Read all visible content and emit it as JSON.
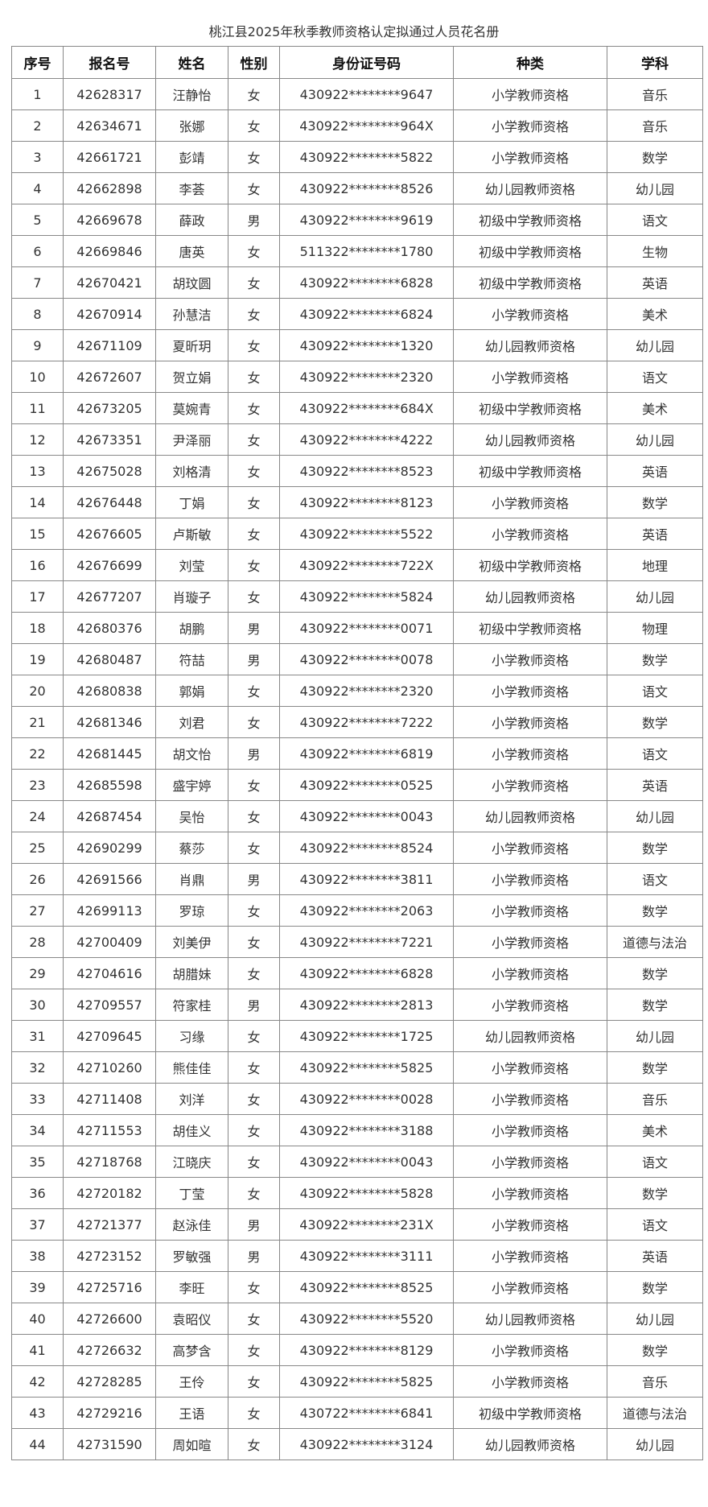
{
  "title": "桃江县2025年秋季教师资格认定拟通过人员花名册",
  "columns": [
    "序号",
    "报名号",
    "姓名",
    "性别",
    "身份证号码",
    "种类",
    "学科"
  ],
  "rows": [
    [
      "1",
      "42628317",
      "汪静怡",
      "女",
      "430922********9647",
      "小学教师资格",
      "音乐"
    ],
    [
      "2",
      "42634671",
      "张娜",
      "女",
      "430922********964X",
      "小学教师资格",
      "音乐"
    ],
    [
      "3",
      "42661721",
      "彭靖",
      "女",
      "430922********5822",
      "小学教师资格",
      "数学"
    ],
    [
      "4",
      "42662898",
      "李荟",
      "女",
      "430922********8526",
      "幼儿园教师资格",
      "幼儿园"
    ],
    [
      "5",
      "42669678",
      "薛政",
      "男",
      "430922********9619",
      "初级中学教师资格",
      "语文"
    ],
    [
      "6",
      "42669846",
      "唐英",
      "女",
      "511322********1780",
      "初级中学教师资格",
      "生物"
    ],
    [
      "7",
      "42670421",
      "胡玟圆",
      "女",
      "430922********6828",
      "初级中学教师资格",
      "英语"
    ],
    [
      "8",
      "42670914",
      "孙慧洁",
      "女",
      "430922********6824",
      "小学教师资格",
      "美术"
    ],
    [
      "9",
      "42671109",
      "夏昕玥",
      "女",
      "430922********1320",
      "幼儿园教师资格",
      "幼儿园"
    ],
    [
      "10",
      "42672607",
      "贺立娟",
      "女",
      "430922********2320",
      "小学教师资格",
      "语文"
    ],
    [
      "11",
      "42673205",
      "莫婉青",
      "女",
      "430922********684X",
      "初级中学教师资格",
      "美术"
    ],
    [
      "12",
      "42673351",
      "尹泽丽",
      "女",
      "430922********4222",
      "幼儿园教师资格",
      "幼儿园"
    ],
    [
      "13",
      "42675028",
      "刘格清",
      "女",
      "430922********8523",
      "初级中学教师资格",
      "英语"
    ],
    [
      "14",
      "42676448",
      "丁娟",
      "女",
      "430922********8123",
      "小学教师资格",
      "数学"
    ],
    [
      "15",
      "42676605",
      "卢斯敏",
      "女",
      "430922********5522",
      "小学教师资格",
      "英语"
    ],
    [
      "16",
      "42676699",
      "刘莹",
      "女",
      "430922********722X",
      "初级中学教师资格",
      "地理"
    ],
    [
      "17",
      "42677207",
      "肖璇子",
      "女",
      "430922********5824",
      "幼儿园教师资格",
      "幼儿园"
    ],
    [
      "18",
      "42680376",
      "胡鹏",
      "男",
      "430922********0071",
      "初级中学教师资格",
      "物理"
    ],
    [
      "19",
      "42680487",
      "符喆",
      "男",
      "430922********0078",
      "小学教师资格",
      "数学"
    ],
    [
      "20",
      "42680838",
      "郭娟",
      "女",
      "430922********2320",
      "小学教师资格",
      "语文"
    ],
    [
      "21",
      "42681346",
      "刘君",
      "女",
      "430922********7222",
      "小学教师资格",
      "数学"
    ],
    [
      "22",
      "42681445",
      "胡文怡",
      "男",
      "430922********6819",
      "小学教师资格",
      "语文"
    ],
    [
      "23",
      "42685598",
      "盛宇婷",
      "女",
      "430922********0525",
      "小学教师资格",
      "英语"
    ],
    [
      "24",
      "42687454",
      "吴怡",
      "女",
      "430922********0043",
      "幼儿园教师资格",
      "幼儿园"
    ],
    [
      "25",
      "42690299",
      "蔡莎",
      "女",
      "430922********8524",
      "小学教师资格",
      "数学"
    ],
    [
      "26",
      "42691566",
      "肖鼎",
      "男",
      "430922********3811",
      "小学教师资格",
      "语文"
    ],
    [
      "27",
      "42699113",
      "罗琼",
      "女",
      "430922********2063",
      "小学教师资格",
      "数学"
    ],
    [
      "28",
      "42700409",
      "刘美伊",
      "女",
      "430922********7221",
      "小学教师资格",
      "道德与法治"
    ],
    [
      "29",
      "42704616",
      "胡腊妹",
      "女",
      "430922********6828",
      "小学教师资格",
      "数学"
    ],
    [
      "30",
      "42709557",
      "符家桂",
      "男",
      "430922********2813",
      "小学教师资格",
      "数学"
    ],
    [
      "31",
      "42709645",
      "习缘",
      "女",
      "430922********1725",
      "幼儿园教师资格",
      "幼儿园"
    ],
    [
      "32",
      "42710260",
      "熊佳佳",
      "女",
      "430922********5825",
      "小学教师资格",
      "数学"
    ],
    [
      "33",
      "42711408",
      "刘洋",
      "女",
      "430922********0028",
      "小学教师资格",
      "音乐"
    ],
    [
      "34",
      "42711553",
      "胡佳义",
      "女",
      "430922********3188",
      "小学教师资格",
      "美术"
    ],
    [
      "35",
      "42718768",
      "江晓庆",
      "女",
      "430922********0043",
      "小学教师资格",
      "语文"
    ],
    [
      "36",
      "42720182",
      "丁莹",
      "女",
      "430922********5828",
      "小学教师资格",
      "数学"
    ],
    [
      "37",
      "42721377",
      "赵泳佳",
      "男",
      "430922********231X",
      "小学教师资格",
      "语文"
    ],
    [
      "38",
      "42723152",
      "罗敏强",
      "男",
      "430922********3111",
      "小学教师资格",
      "英语"
    ],
    [
      "39",
      "42725716",
      "李旺",
      "女",
      "430922********8525",
      "小学教师资格",
      "数学"
    ],
    [
      "40",
      "42726600",
      "袁昭仪",
      "女",
      "430922********5520",
      "幼儿园教师资格",
      "幼儿园"
    ],
    [
      "41",
      "42726632",
      "高梦含",
      "女",
      "430922********8129",
      "小学教师资格",
      "数学"
    ],
    [
      "42",
      "42728285",
      "王伶",
      "女",
      "430922********5825",
      "小学教师资格",
      "音乐"
    ],
    [
      "43",
      "42729216",
      "王语",
      "女",
      "430722********6841",
      "初级中学教师资格",
      "道德与法治"
    ],
    [
      "44",
      "42731590",
      "周如暄",
      "女",
      "430922********3124",
      "幼儿园教师资格",
      "幼儿园"
    ]
  ]
}
